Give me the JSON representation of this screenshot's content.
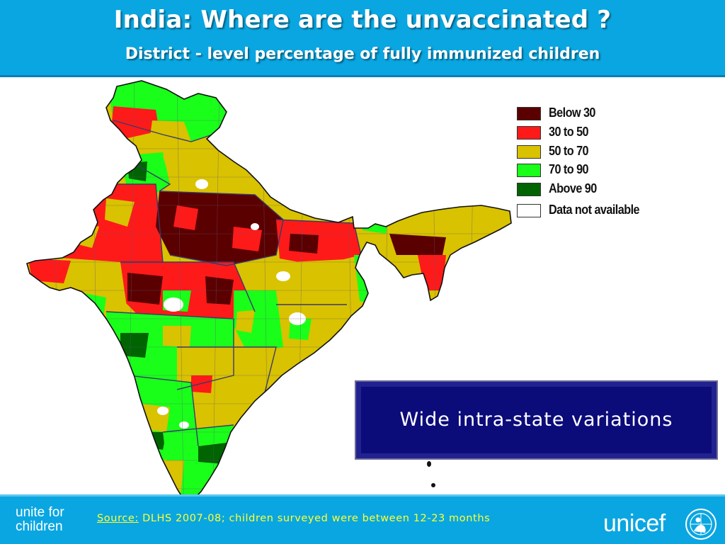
{
  "header": {
    "title": "India: Where are the unvaccinated ?",
    "subtitle": "District - level percentage of fully immunized children"
  },
  "legend": [
    {
      "label": "Below 30",
      "color": "#5b0000"
    },
    {
      "label": "30 to 50",
      "color": "#ff1a1a"
    },
    {
      "label": "50 to 70",
      "color": "#d9c200"
    },
    {
      "label": "70 to 90",
      "color": "#1aff1a"
    },
    {
      "label": "Above 90",
      "color": "#006400"
    },
    {
      "label": "Data not available",
      "color": "#ffffff"
    }
  ],
  "callout": {
    "text": "Wide intra-state variations"
  },
  "footer": {
    "tagline_line1": "unite for",
    "tagline_line2": "children",
    "source_label": "Source:",
    "source_text": " DLHS 2007-08; children surveyed were between 12-23 months",
    "logo_text": "unicef"
  },
  "colors": {
    "header_bg": "#0aa6e1",
    "callout_bg": "#0b0b7a",
    "source_text": "#ffff33"
  }
}
